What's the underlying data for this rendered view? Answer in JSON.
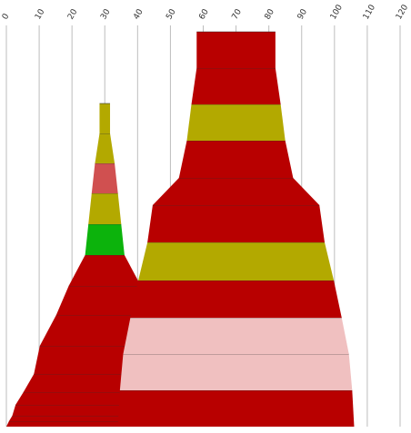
{
  "chart_data": {
    "type": "bar",
    "title": "",
    "xlabel": "",
    "ylabel": "",
    "x_axis": {
      "min": 0,
      "max": 120,
      "ticks": [
        0,
        10,
        20,
        30,
        40,
        50,
        60,
        70,
        80,
        90,
        100,
        110,
        120
      ],
      "tick_labels": [
        "0",
        "10",
        "20",
        "30",
        "40",
        "50",
        "60",
        "70",
        "80",
        "90",
        "100",
        "110",
        "120"
      ],
      "label_position": "top",
      "label_rotation": "rotated"
    },
    "grid": true,
    "stacks": [
      {
        "center": 30,
        "segments": [
          {
            "left": 0,
            "right": 63,
            "color": "#b80000"
          },
          {
            "left": 0.8,
            "right": 62.2,
            "color": "#b80000"
          },
          {
            "left": 1.8,
            "right": 61.2,
            "color": "#b80000"
          },
          {
            "left": 2.8,
            "right": 60.2,
            "color": "#b80000"
          },
          {
            "left": 5.2,
            "right": 57.8,
            "color": "#b80000"
          },
          {
            "left": 8.4,
            "right": 51.6,
            "color": "#b80000"
          },
          {
            "left": 10.2,
            "right": 49.8,
            "color": "#b80000"
          },
          {
            "left": 15.2,
            "right": 44.8,
            "color": "#b80000"
          },
          {
            "left": 19,
            "right": 41,
            "color": "#b80000"
          },
          {
            "left": 24,
            "right": 36,
            "color": "#0cb30c"
          },
          {
            "left": 25,
            "right": 35,
            "color": "#b3a900"
          },
          {
            "left": 26,
            "right": 34,
            "color": "#d05050"
          },
          {
            "left": 27,
            "right": 33,
            "color": "#b3a900"
          },
          {
            "left": 28.4,
            "right": 31.6,
            "color": "#b3a900"
          }
        ]
      },
      {
        "center": 70,
        "segments": [
          {
            "left": 34,
            "right": 106,
            "color": "#b80000"
          },
          {
            "left": 34.6,
            "right": 105.4,
            "color": "#f0c0c0"
          },
          {
            "left": 35.6,
            "right": 104.4,
            "color": "#f0c0c0"
          },
          {
            "left": 37.8,
            "right": 102.2,
            "color": "#b80000"
          },
          {
            "left": 40.2,
            "right": 99.8,
            "color": "#b3a900"
          },
          {
            "left": 43,
            "right": 97,
            "color": "#b80000"
          },
          {
            "left": 44.6,
            "right": 95.4,
            "color": "#b80000"
          },
          {
            "left": 52.6,
            "right": 87.4,
            "color": "#b80000"
          },
          {
            "left": 55,
            "right": 85,
            "color": "#b3a900"
          },
          {
            "left": 56.4,
            "right": 83.6,
            "color": "#b80000"
          },
          {
            "left": 58,
            "right": 82,
            "color": "#b80000"
          }
        ]
      }
    ],
    "segment_counts_note": ""
  }
}
